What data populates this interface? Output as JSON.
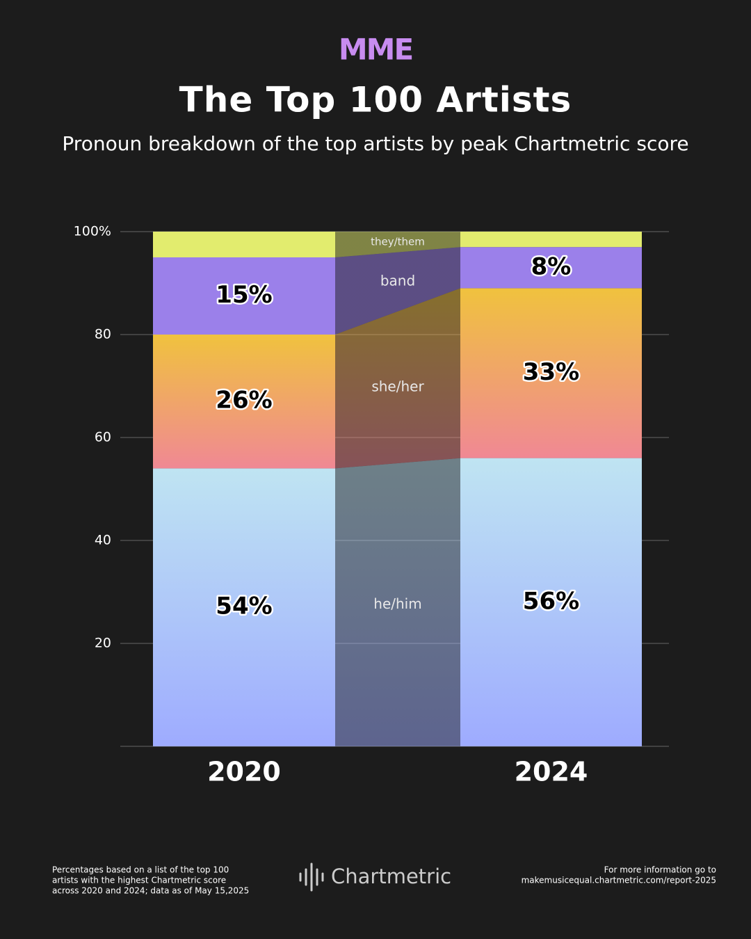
{
  "logo": "MME",
  "chart_data": {
    "type": "stacked_bar",
    "title": "The Top 100 Artists",
    "subtitle": "Pronoun breakdown of the top artists by peak Chartmetric score",
    "categories": [
      "2020",
      "2024"
    ],
    "series": [
      {
        "name": "he/him",
        "color": [
          "#bfe4f2",
          "#9eabff"
        ],
        "values": [
          54,
          56
        ],
        "value_labels": [
          "54%",
          "56%"
        ]
      },
      {
        "name": "she/her",
        "color": [
          "#f0c23e",
          "#f08894"
        ],
        "values": [
          26,
          33
        ],
        "value_labels": [
          "26%",
          "33%"
        ]
      },
      {
        "name": "band",
        "color": [
          "#9b80ea",
          "#9b80ea"
        ],
        "values": [
          15,
          8
        ],
        "value_labels": [
          "15%",
          "8%"
        ]
      },
      {
        "name": "they/them",
        "color": [
          "#e2ec6e",
          "#e2ec6e"
        ],
        "values": [
          5,
          3
        ]
      }
    ],
    "ylim": [
      0,
      100
    ],
    "yticks": [
      20,
      40,
      60,
      80,
      {
        "value": 100,
        "label": "100%"
      }
    ],
    "grid": true
  },
  "footer": {
    "note": [
      "Percentages based on a list of the top 100",
      "artists with the highest Chartmetric score",
      "across 2020 and 2024; data as of May 15,2025"
    ],
    "brand": "Chartmetric",
    "link": [
      "For more information go to",
      "makemusicequal.chartmetric.com/report-2025"
    ]
  }
}
